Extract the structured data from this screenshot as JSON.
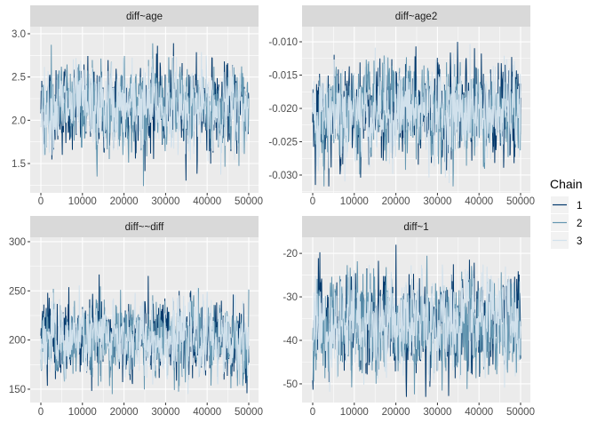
{
  "chart_data": {
    "type": "line",
    "title": "",
    "xlabel": "",
    "ylabel": "",
    "xlim": [
      -2564,
      52350
    ],
    "x_ticks": [
      0,
      10000,
      20000,
      30000,
      40000,
      50000
    ],
    "x_tick_labels": [
      "0",
      "10000",
      "20000",
      "30000",
      "40000",
      "50000"
    ],
    "grid": true,
    "legend": {
      "title": "Chain",
      "placement": "right",
      "entries": [
        "1",
        "2",
        "3"
      ]
    },
    "series": [
      {
        "name": "1",
        "color": "#03396C"
      },
      {
        "name": "2",
        "color": "#6497B1"
      },
      {
        "name": "3",
        "color": "#D1E1EC"
      }
    ],
    "iterations": [
      0,
      50000
    ],
    "panels": [
      {
        "title": "diff~age",
        "mean": 2.15,
        "sd": 0.24,
        "min": 1.23,
        "max": 2.98,
        "ylim": [
          1.161,
          3.082
        ],
        "y_ticks": [
          1.5,
          2.0,
          2.5,
          3.0
        ],
        "y_tick_labels": [
          "1.5",
          "2.0",
          "2.5",
          "3.0"
        ]
      },
      {
        "title": "diff~age2",
        "mean": -0.0205,
        "sd": 0.0034,
        "min": -0.0317,
        "max": -0.009,
        "ylim": [
          -0.03267,
          -0.00773
        ],
        "y_ticks": [
          -0.03,
          -0.025,
          -0.02,
          -0.015,
          -0.01
        ],
        "y_tick_labels": [
          "-0.030",
          "-0.025",
          "-0.020",
          "-0.015",
          "-0.010"
        ]
      },
      {
        "title": "diff~~diff",
        "mean": 201,
        "sd": 19,
        "min": 143,
        "max": 296,
        "ylim": [
          136.4,
          304.5
        ],
        "y_ticks": [
          150,
          200,
          250,
          300
        ],
        "y_tick_labels": [
          "150",
          "200",
          "250",
          "300"
        ]
      },
      {
        "title": "diff~1",
        "mean": -36.5,
        "sd": 5.6,
        "min": -53,
        "max": -18,
        "ylim": [
          -54.3,
          -16.3
        ],
        "y_ticks": [
          -50,
          -40,
          -30,
          -20
        ],
        "y_tick_labels": [
          "-50",
          "-40",
          "-30",
          "-20"
        ]
      }
    ]
  }
}
